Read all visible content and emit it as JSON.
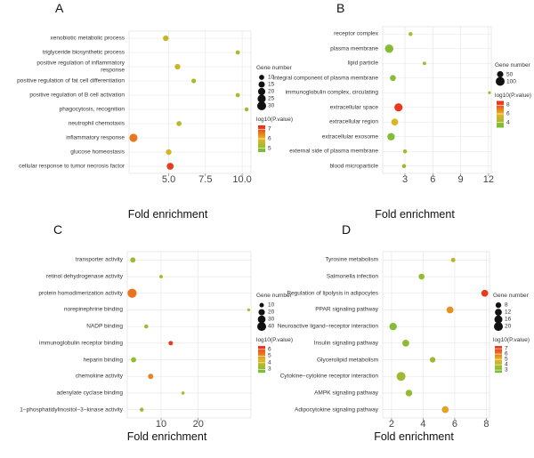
{
  "chart_data": [
    {
      "type": "bubble",
      "panel": "A",
      "xlabel": "Fold enrichment",
      "categories": [
        "xenobiotic metabolic process",
        "triglyceride biosynthetic process",
        "positive regulation of inflammatory response",
        "positive regulation of fat cell differentiation",
        "positive regulation of B cell activation",
        "phagocytosis, recognition",
        "neutrophil chemotaxis",
        "inflammatory response",
        "glucose homeostasis",
        "cellular response to tumor necrosis factor"
      ],
      "values": [
        4.8,
        9.7,
        5.6,
        6.7,
        9.7,
        10.3,
        5.7,
        2.6,
        5.0,
        5.1
      ],
      "sizes": [
        12,
        7,
        12,
        8,
        7,
        6,
        10,
        25,
        12,
        18
      ],
      "color_values": [
        5.6,
        5.4,
        5.7,
        5.3,
        5.4,
        5.2,
        5.5,
        6.6,
        5.8,
        7.2
      ],
      "xlim": [
        2.3,
        10.6
      ],
      "xticks": [
        {
          "value": 5,
          "label": "5.0"
        },
        {
          "value": 7.5,
          "label": "7.5"
        },
        {
          "value": 10,
          "label": "10.0"
        }
      ],
      "size_title": "Gene number",
      "size_legend": [
        10,
        15,
        20,
        25,
        30
      ],
      "color_title": "log10(P.value)",
      "clim": [
        4.6,
        7.4
      ],
      "cticks": [
        5,
        6,
        7
      ],
      "colorscale": [
        "#6dbe3a",
        "#e6b422",
        "#e8271e"
      ],
      "grid": true
    },
    {
      "type": "bubble",
      "panel": "B",
      "xlabel": "Fold enrichment",
      "categories": [
        "receptor complex",
        "plasma membrane",
        "lipid particle",
        "integral component of plasma membrane",
        "immunoglobulin complex, circulating",
        "extracellular space",
        "extracellular region",
        "extracellular exosome",
        "external side of plasma membrane",
        "blood microparticle"
      ],
      "values": [
        3.6,
        1.3,
        5.1,
        1.7,
        12.1,
        2.3,
        1.9,
        1.5,
        3.0,
        2.9
      ],
      "sizes": [
        20,
        90,
        15,
        45,
        10,
        85,
        60,
        70,
        20,
        20
      ],
      "color_values": [
        4.5,
        3.5,
        4.2,
        3.6,
        4.0,
        8.6,
        5.6,
        3.4,
        4.2,
        3.9
      ],
      "xlim": [
        0.6,
        12.3
      ],
      "xticks": [
        3,
        6,
        9,
        12
      ],
      "size_title": "Gene number",
      "size_legend": [
        50,
        100
      ],
      "color_title": "log10(P.value)",
      "clim": [
        2.8,
        9
      ],
      "cticks": [
        4,
        6,
        8
      ],
      "colorscale": [
        "#6dbe3a",
        "#e6b422",
        "#e8271e"
      ],
      "grid": true
    },
    {
      "type": "bubble",
      "panel": "C",
      "xlabel": "Fold enrichment",
      "categories": [
        "transporter activity",
        "retinol dehydrogenase activity",
        "protein homodimerization activity",
        "norepinephrine binding",
        "NADP binding",
        "immunoglobulin receptor binding",
        "heparin binding",
        "chemokine activity",
        "adenylate cyclase binding",
        "1−phosphatidylinositol−3−kinase activity"
      ],
      "values": [
        2.4,
        10,
        2.2,
        33.6,
        6.0,
        12.6,
        2.6,
        7.2,
        15.9,
        4.8
      ],
      "sizes": [
        14,
        6,
        42,
        4,
        8,
        10,
        14,
        14,
        5,
        8
      ],
      "color_values": [
        3.2,
        3.4,
        5.4,
        3.6,
        3.3,
        6.2,
        3.1,
        5.2,
        3.5,
        3.3
      ],
      "xlim": [
        0.9,
        34.2
      ],
      "xticks": [
        10,
        20
      ],
      "size_title": "Gene number",
      "size_legend": [
        10,
        20,
        30,
        40
      ],
      "color_title": "log10(P.value)",
      "clim": [
        2.5,
        6.5
      ],
      "cticks": [
        3,
        4,
        5,
        6
      ],
      "colorscale": [
        "#6dbe3a",
        "#e6b422",
        "#e8271e"
      ],
      "grid": true
    },
    {
      "type": "bubble",
      "panel": "D",
      "xlabel": "Fold enrichment",
      "categories": [
        "Tyrosine metabolism",
        "Salmonella infection",
        "Regulation of lipolysis in adipocytes",
        "PPAR signaling pathway",
        "Neuroactive ligand−receptor interaction",
        "Insulin signaling pathway",
        "Glycerolipid metabolism",
        "Cytokine−cytokine receptor interaction",
        "AMPK signaling pathway",
        "Adipocytokine signaling pathway"
      ],
      "values": [
        5.9,
        3.9,
        7.9,
        5.7,
        2.1,
        2.9,
        4.6,
        2.6,
        3.1,
        5.4
      ],
      "sizes": [
        5,
        9,
        12,
        12,
        14,
        12,
        8,
        20,
        11,
        12
      ],
      "color_values": [
        4.0,
        3.3,
        7.2,
        5.6,
        3.0,
        3.2,
        3.4,
        3.5,
        3.3,
        5.3
      ],
      "xlim": [
        1.44,
        8.2
      ],
      "xticks": [
        2,
        4,
        6,
        8
      ],
      "size_title": "Gene number",
      "size_legend": [
        8,
        12,
        16,
        20
      ],
      "color_title": "log10(P.value)",
      "clim": [
        2.5,
        7.5
      ],
      "cticks": [
        3,
        4,
        5,
        6,
        7
      ],
      "colorscale": [
        "#6dbe3a",
        "#e6b422",
        "#e8271e"
      ],
      "grid": true
    }
  ]
}
